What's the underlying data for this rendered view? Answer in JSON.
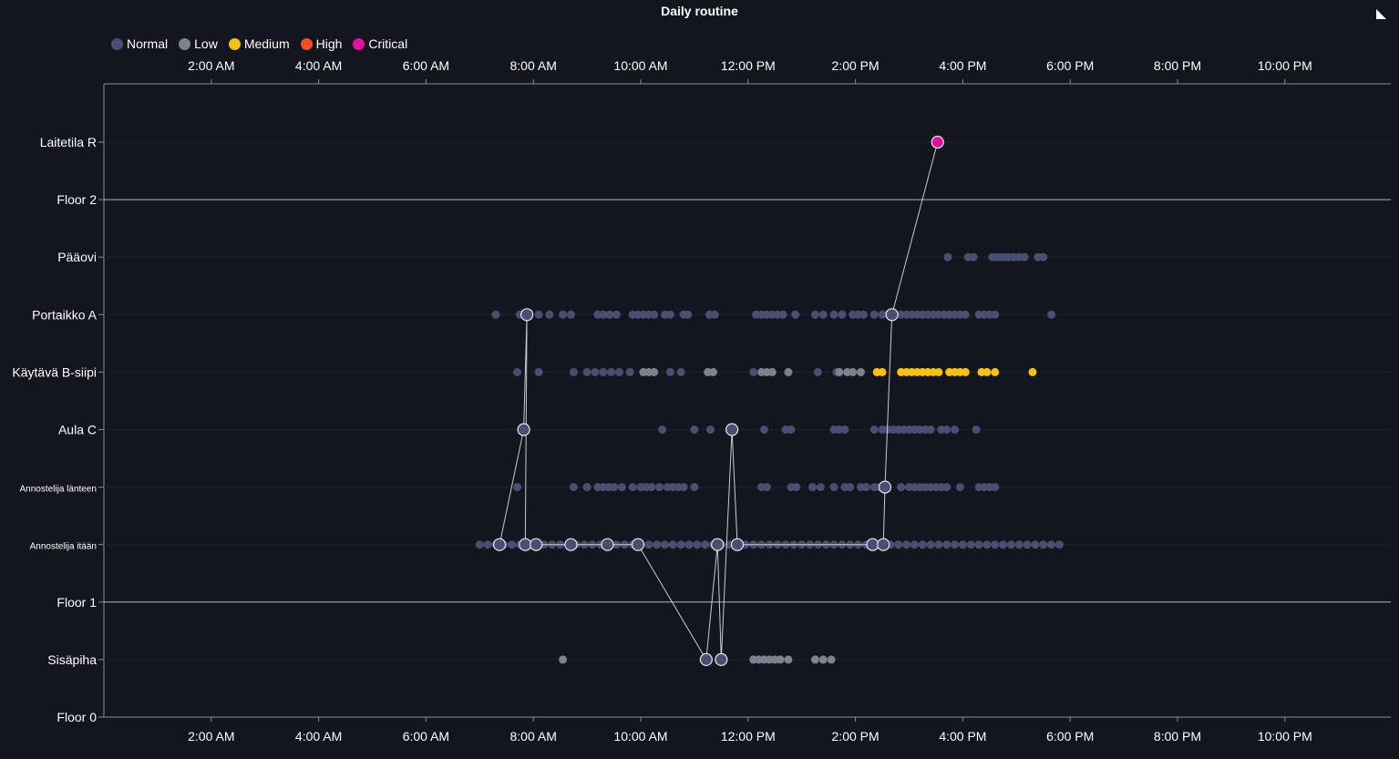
{
  "chart_data": {
    "type": "scatter",
    "title": "Daily routine",
    "x_range_hours": [
      0,
      24
    ],
    "x_ticks": [
      {
        "hour": 2,
        "label": "2:00 AM"
      },
      {
        "hour": 4,
        "label": "4:00 AM"
      },
      {
        "hour": 6,
        "label": "6:00 AM"
      },
      {
        "hour": 8,
        "label": "8:00 AM"
      },
      {
        "hour": 10,
        "label": "10:00 AM"
      },
      {
        "hour": 12,
        "label": "12:00 PM"
      },
      {
        "hour": 14,
        "label": "2:00 PM"
      },
      {
        "hour": 16,
        "label": "4:00 PM"
      },
      {
        "hour": 18,
        "label": "6:00 PM"
      },
      {
        "hour": 20,
        "label": "8:00 PM"
      },
      {
        "hour": 22,
        "label": "10:00 PM"
      }
    ],
    "categories": [
      {
        "label": "Laitetila R",
        "floor": false
      },
      {
        "label": "Floor 2",
        "floor": true
      },
      {
        "label": "Pääovi",
        "floor": false
      },
      {
        "label": "Portaikko A",
        "floor": false
      },
      {
        "label": "Käytävä B-siipi",
        "floor": false
      },
      {
        "label": "Aula C",
        "floor": false
      },
      {
        "label": "Annostelija länteen",
        "floor": false,
        "small": true
      },
      {
        "label": "Annostelija itään",
        "floor": false,
        "small": true
      },
      {
        "label": "Floor 1",
        "floor": true
      },
      {
        "label": "Sisäpiha",
        "floor": false
      },
      {
        "label": "Floor 0",
        "floor": true
      }
    ],
    "legend": {
      "position": "top-left",
      "items": [
        {
          "label": "Normal",
          "color": "#4a4f72"
        },
        {
          "label": "Low",
          "color": "#7f818f"
        },
        {
          "label": "Medium",
          "color": "#f5c211"
        },
        {
          "label": "High",
          "color": "#f4511e"
        },
        {
          "label": "Critical",
          "color": "#e0119d"
        }
      ]
    },
    "dot_series": [
      {
        "category": "Pääovi",
        "level": "Normal",
        "x": [
          15.72,
          16.1,
          16.2,
          16.55,
          16.62,
          16.7,
          16.78,
          16.85,
          16.95,
          17.05,
          17.15,
          17.4,
          17.5
        ]
      },
      {
        "category": "Portaikko A",
        "level": "Normal",
        "x": [
          7.3,
          7.75,
          8.1,
          8.3,
          8.55,
          8.7,
          9.2,
          9.3,
          9.42,
          9.55,
          9.85,
          9.95,
          10.05,
          10.15,
          10.25,
          10.45,
          10.55,
          10.8,
          10.88,
          11.28,
          11.38,
          12.15,
          12.25,
          12.35,
          12.45,
          12.55,
          12.65,
          12.88,
          13.25,
          13.4,
          13.6,
          13.75,
          13.95,
          14.05,
          14.15,
          14.35,
          14.5,
          14.6,
          14.75,
          14.85,
          14.95,
          15.05,
          15.15,
          15.25,
          15.35,
          15.45,
          15.55,
          15.65,
          15.75,
          15.85,
          15.95,
          16.05,
          16.3,
          16.4,
          16.5,
          16.6,
          17.65
        ]
      },
      {
        "category": "Käytävä B-siipi",
        "level": "Normal",
        "x": [
          7.7,
          8.1,
          8.75,
          9.0,
          9.15,
          9.3,
          9.45,
          9.6,
          9.8,
          10.55,
          10.75,
          12.1,
          13.3,
          13.65
        ]
      },
      {
        "category": "Käytävä B-siipi",
        "level": "Low",
        "x": [
          10.05,
          10.15,
          10.25,
          11.25,
          11.35,
          12.25,
          12.35,
          12.45,
          12.75,
          13.7,
          13.85,
          13.95,
          14.1
        ]
      },
      {
        "category": "Käytävä B-siipi",
        "level": "Medium",
        "x": [
          14.4,
          14.5,
          14.85,
          14.95,
          15.05,
          15.15,
          15.25,
          15.35,
          15.45,
          15.55,
          15.75,
          15.85,
          15.95,
          16.05,
          16.35,
          16.45,
          16.6,
          17.3
        ]
      },
      {
        "category": "Aula C",
        "level": "Normal",
        "x": [
          10.4,
          11.0,
          11.3,
          11.7,
          12.3,
          12.7,
          12.8,
          13.6,
          13.7,
          13.8,
          14.35,
          14.5,
          14.6,
          14.7,
          14.8,
          14.9,
          15.0,
          15.1,
          15.2,
          15.3,
          15.4,
          15.6,
          15.7,
          15.85,
          16.25
        ]
      },
      {
        "category": "Annostelija länteen",
        "level": "Normal",
        "x": [
          7.7,
          8.75,
          9.0,
          9.2,
          9.3,
          9.4,
          9.5,
          9.65,
          9.85,
          10.0,
          10.1,
          10.2,
          10.35,
          10.5,
          10.6,
          10.7,
          10.8,
          11.0,
          12.25,
          12.35,
          12.8,
          12.9,
          13.2,
          13.35,
          13.6,
          13.8,
          13.9,
          14.1,
          14.2,
          14.35,
          14.45,
          14.85,
          15.0,
          15.1,
          15.2,
          15.3,
          15.4,
          15.5,
          15.6,
          15.7,
          15.95,
          16.3,
          16.4,
          16.5,
          16.6
        ]
      },
      {
        "category": "Annostelija itään",
        "level": "Normal",
        "x": [
          7.0,
          7.15,
          7.3,
          7.45,
          7.6,
          7.75,
          7.9,
          8.05,
          8.2,
          8.35,
          8.5,
          8.65,
          8.8,
          8.95,
          9.1,
          9.25,
          9.4,
          9.55,
          9.7,
          9.85,
          10.0,
          10.15,
          10.3,
          10.45,
          10.6,
          10.75,
          10.9,
          11.05,
          11.2,
          11.35,
          11.5,
          11.65,
          11.8,
          11.95,
          12.1,
          12.25,
          12.4,
          12.55,
          12.7,
          12.85,
          13.0,
          13.15,
          13.3,
          13.45,
          13.6,
          13.75,
          13.9,
          14.05,
          14.2,
          14.35,
          14.5,
          14.65,
          14.8,
          14.95,
          15.1,
          15.25,
          15.4,
          15.55,
          15.7,
          15.85,
          16.0,
          16.15,
          16.3,
          16.45,
          16.6,
          16.75,
          16.9,
          17.05,
          17.2,
          17.35,
          17.5,
          17.65,
          17.8
        ]
      },
      {
        "category": "Sisäpiha",
        "level": "Low",
        "x": [
          8.55,
          12.1,
          12.2,
          12.3,
          12.4,
          12.5,
          12.6,
          12.75,
          13.25,
          13.4,
          13.55
        ]
      }
    ],
    "path": [
      {
        "hour": 7.37,
        "category": "Annostelija itään"
      },
      {
        "hour": 7.82,
        "category": "Aula C"
      },
      {
        "hour": 7.88,
        "category": "Portaikko A"
      },
      {
        "hour": 7.85,
        "category": "Annostelija itään"
      },
      {
        "hour": 8.05,
        "category": "Annostelija itään"
      },
      {
        "hour": 8.7,
        "category": "Annostelija itään"
      },
      {
        "hour": 9.38,
        "category": "Annostelija itään"
      },
      {
        "hour": 9.95,
        "category": "Annostelija itään"
      },
      {
        "hour": 11.22,
        "category": "Sisäpiha"
      },
      {
        "hour": 11.43,
        "category": "Annostelija itään"
      },
      {
        "hour": 11.5,
        "category": "Sisäpiha"
      },
      {
        "hour": 11.7,
        "category": "Aula C"
      },
      {
        "hour": 11.8,
        "category": "Annostelija itään"
      },
      {
        "hour": 14.32,
        "category": "Annostelija itään"
      },
      {
        "hour": 14.52,
        "category": "Annostelija itään"
      },
      {
        "hour": 14.55,
        "category": "Annostelija länteen"
      },
      {
        "hour": 14.68,
        "category": "Portaikko A"
      },
      {
        "hour": 15.53,
        "category": "Laitetila R",
        "level": "Critical"
      }
    ]
  }
}
